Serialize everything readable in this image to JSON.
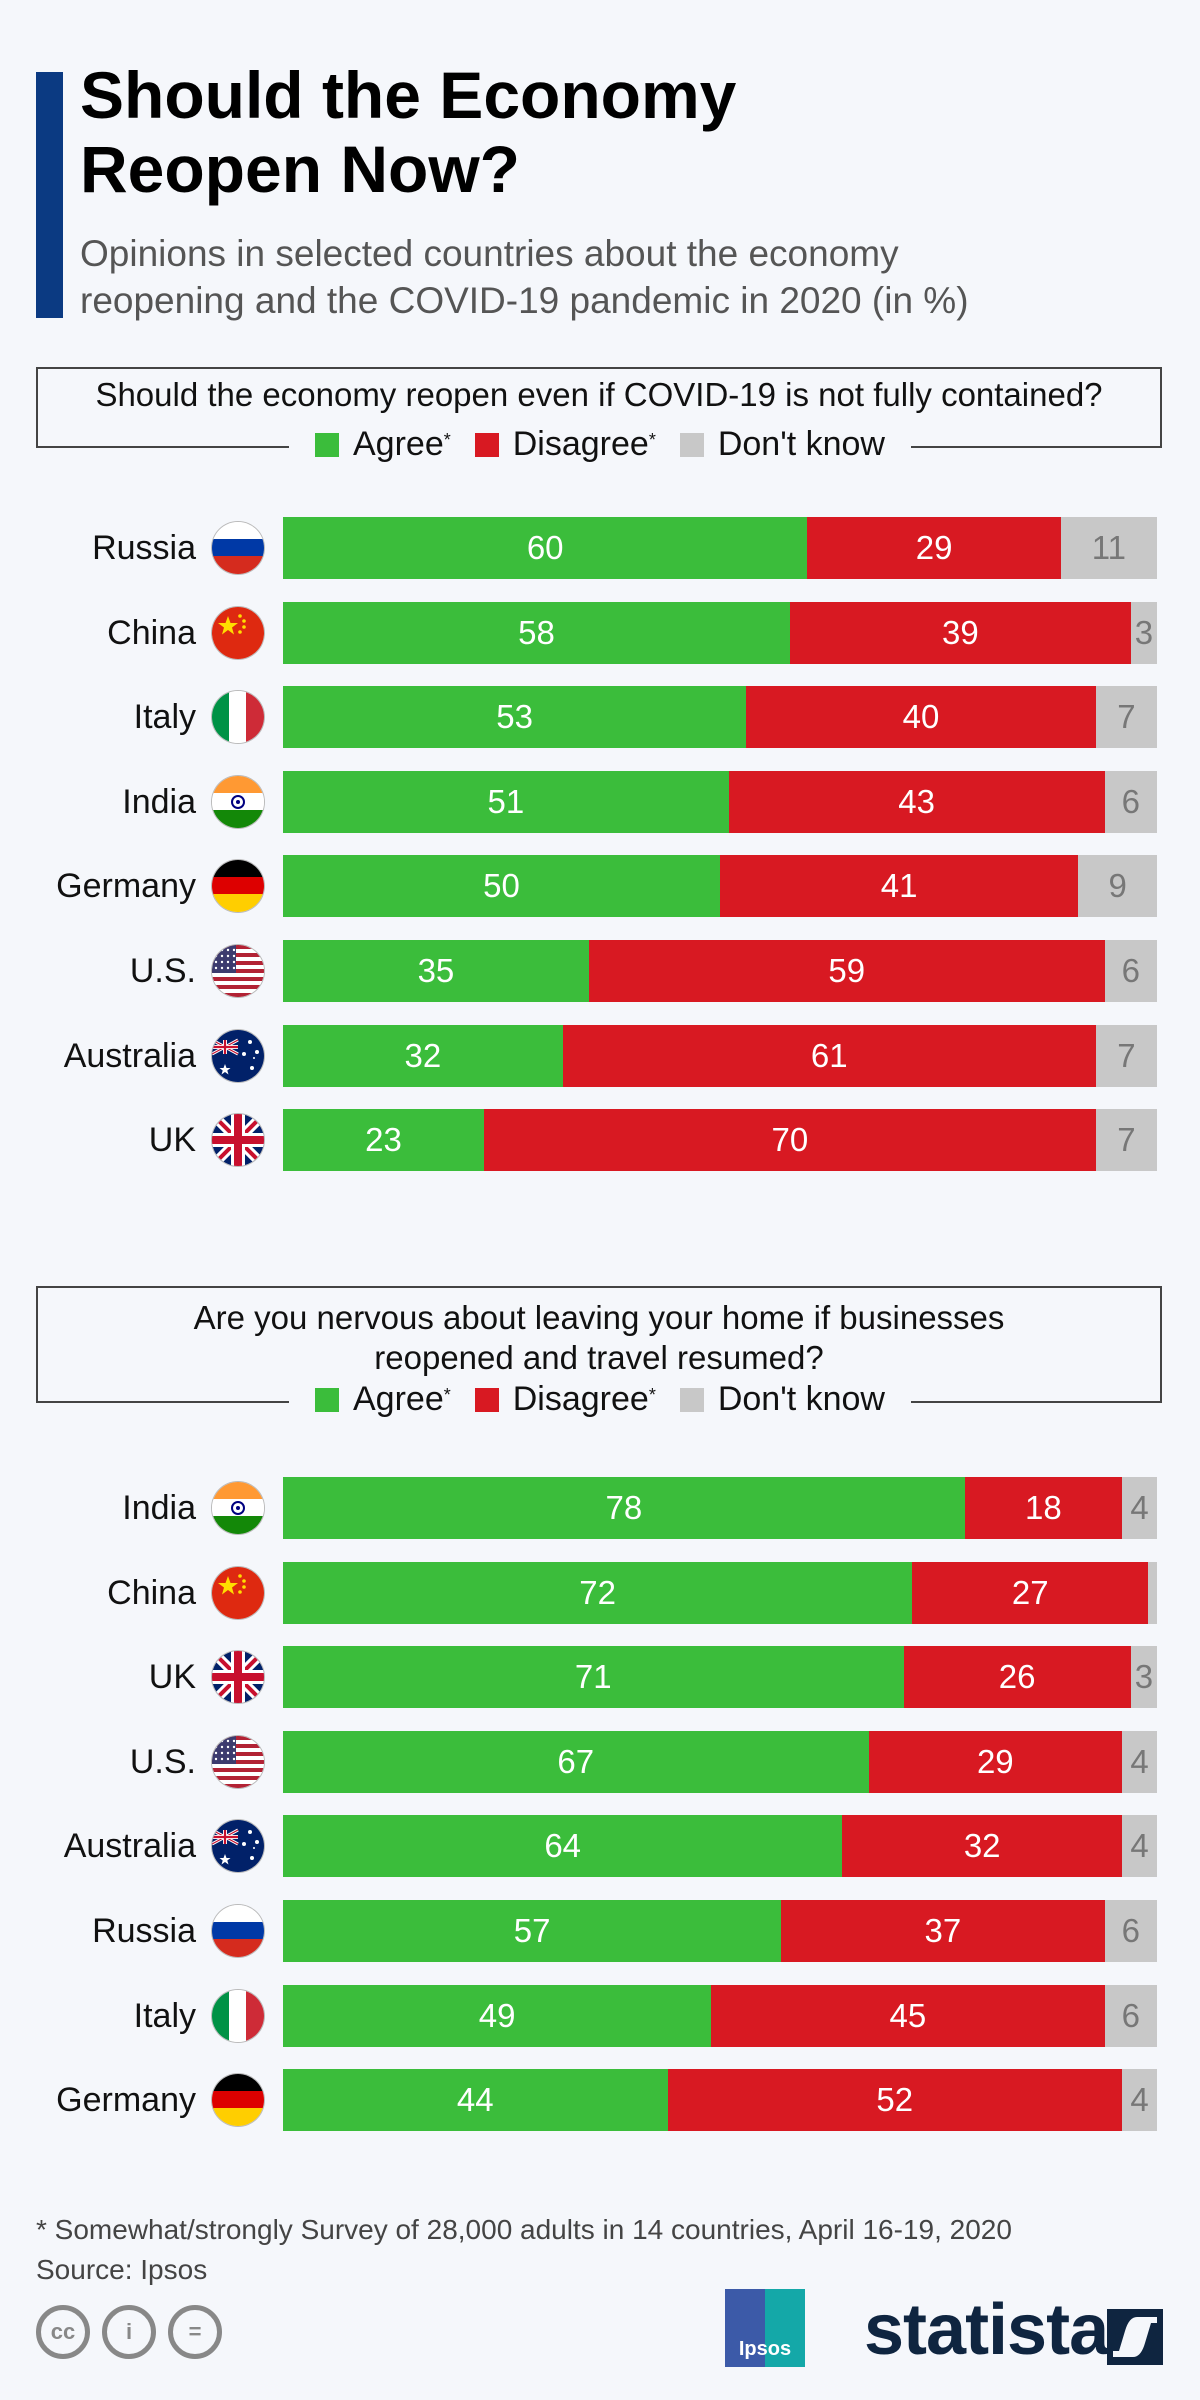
{
  "header": {
    "title_lines": [
      "Should the Economy",
      "Reopen Now?"
    ],
    "subtitle_lines": [
      "Opinions in selected countries about the economy",
      "reopening and the COVID-19 pandemic in 2020 (in %)"
    ],
    "accent_color": "#0b3a82"
  },
  "legend": {
    "items": [
      {
        "label": "Agree",
        "mark": "*",
        "color": "#3bbd3b"
      },
      {
        "label": "Disagree",
        "mark": "*",
        "color": "#d81922"
      },
      {
        "label": "Don't know",
        "mark": "",
        "color": "#c8c8c8"
      }
    ]
  },
  "charts": [
    {
      "question_lines": [
        "Should the economy reopen even if COVID-19 is not fully contained?"
      ],
      "rows": [
        {
          "country": "Russia",
          "flag": "russia-flag",
          "agree": "60",
          "disagree": "29",
          "dk": "11"
        },
        {
          "country": "China",
          "flag": "china-flag",
          "agree": "58",
          "disagree": "39",
          "dk": "3"
        },
        {
          "country": "Italy",
          "flag": "italy-flag",
          "agree": "53",
          "disagree": "40",
          "dk": "7"
        },
        {
          "country": "India",
          "flag": "india-flag",
          "agree": "51",
          "disagree": "43",
          "dk": "6"
        },
        {
          "country": "Germany",
          "flag": "germany-flag",
          "agree": "50",
          "disagree": "41",
          "dk": "9"
        },
        {
          "country": "U.S.",
          "flag": "us-flag",
          "agree": "35",
          "disagree": "59",
          "dk": "6"
        },
        {
          "country": "Australia",
          "flag": "australia-flag",
          "agree": "32",
          "disagree": "61",
          "dk": "7"
        },
        {
          "country": "UK",
          "flag": "uk-flag",
          "agree": "23",
          "disagree": "70",
          "dk": "7"
        }
      ]
    },
    {
      "question_lines": [
        "Are you nervous about leaving your home if businesses",
        "reopened and travel resumed?"
      ],
      "rows": [
        {
          "country": "India",
          "flag": "india-flag",
          "agree": "78",
          "disagree": "18",
          "dk": "4"
        },
        {
          "country": "China",
          "flag": "china-flag",
          "agree": "72",
          "disagree": "27",
          "dk": ""
        },
        {
          "country": "UK",
          "flag": "uk-flag",
          "agree": "71",
          "disagree": "26",
          "dk": "3"
        },
        {
          "country": "U.S.",
          "flag": "us-flag",
          "agree": "67",
          "disagree": "29",
          "dk": "4"
        },
        {
          "country": "Australia",
          "flag": "australia-flag",
          "agree": "64",
          "disagree": "32",
          "dk": "4"
        },
        {
          "country": "Russia",
          "flag": "russia-flag",
          "agree": "57",
          "disagree": "37",
          "dk": "6"
        },
        {
          "country": "Italy",
          "flag": "italy-flag",
          "agree": "49",
          "disagree": "45",
          "dk": "6"
        },
        {
          "country": "Germany",
          "flag": "germany-flag",
          "agree": "44",
          "disagree": "52",
          "dk": "4"
        }
      ]
    }
  ],
  "footer": {
    "note": "* Somewhat/strongly Survey of 28,000 adults in 14 countries, April 16-19, 2020",
    "source": "Source: Ipsos",
    "cc_icons": [
      "cc",
      "i",
      "="
    ],
    "partner_logo": "Ipsos",
    "brand": "statista"
  },
  "chart_data": [
    {
      "type": "bar",
      "orientation": "horizontal",
      "stacked": true,
      "title": "Should the economy reopen even if COVID-19 is not fully contained?",
      "categories": [
        "Russia",
        "China",
        "Italy",
        "India",
        "Germany",
        "U.S.",
        "Australia",
        "UK"
      ],
      "series": [
        {
          "name": "Agree*",
          "color": "#3bbd3b",
          "values": [
            60,
            58,
            53,
            51,
            50,
            35,
            32,
            23
          ]
        },
        {
          "name": "Disagree*",
          "color": "#d81922",
          "values": [
            29,
            39,
            40,
            43,
            41,
            59,
            61,
            70
          ]
        },
        {
          "name": "Don't know",
          "color": "#c8c8c8",
          "values": [
            11,
            3,
            7,
            6,
            9,
            6,
            7,
            7
          ]
        }
      ],
      "xlabel": "",
      "ylabel": "",
      "unit": "%",
      "xlim": [
        0,
        100
      ],
      "legend_position": "top",
      "grid": false
    },
    {
      "type": "bar",
      "orientation": "horizontal",
      "stacked": true,
      "title": "Are you nervous about leaving your home if businesses reopened and travel resumed?",
      "categories": [
        "India",
        "China",
        "UK",
        "U.S.",
        "Australia",
        "Russia",
        "Italy",
        "Germany"
      ],
      "series": [
        {
          "name": "Agree*",
          "color": "#3bbd3b",
          "values": [
            78,
            72,
            71,
            67,
            64,
            57,
            49,
            44
          ]
        },
        {
          "name": "Disagree*",
          "color": "#d81922",
          "values": [
            18,
            27,
            26,
            29,
            32,
            37,
            45,
            52
          ]
        },
        {
          "name": "Don't know",
          "color": "#c8c8c8",
          "values": [
            4,
            1,
            3,
            4,
            4,
            6,
            6,
            4
          ]
        }
      ],
      "xlabel": "",
      "ylabel": "",
      "unit": "%",
      "xlim": [
        0,
        100
      ],
      "legend_position": "top",
      "grid": false
    }
  ]
}
